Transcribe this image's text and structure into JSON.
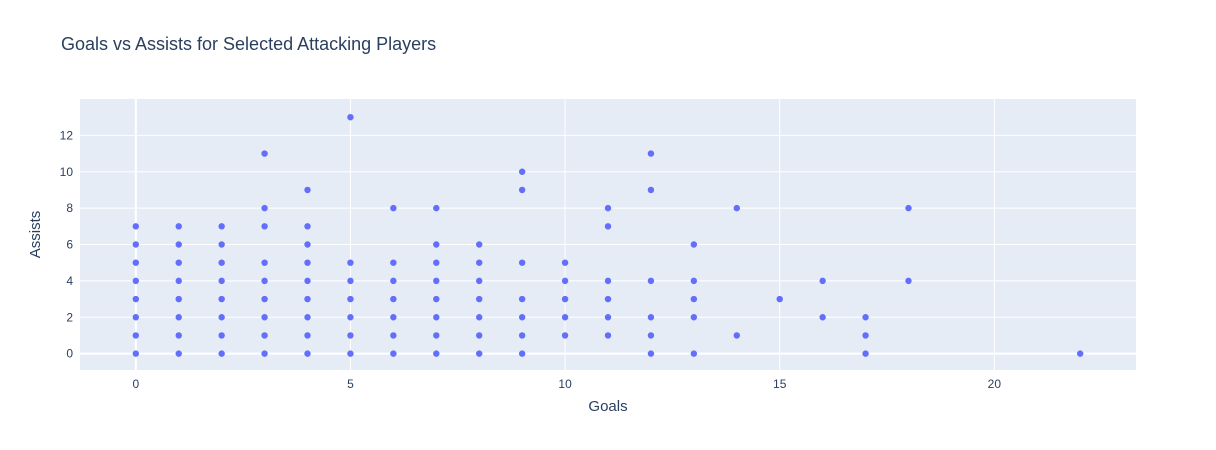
{
  "chart_data": {
    "type": "scatter",
    "title": "Goals vs Assists for Selected Attacking Players",
    "xlabel": "Goals",
    "ylabel": "Assists",
    "xlim": [
      -1.3,
      23.3
    ],
    "ylim": [
      -0.9,
      14.0
    ],
    "x_ticks": [
      0,
      5,
      10,
      15,
      20
    ],
    "y_ticks": [
      0,
      2,
      4,
      6,
      8,
      10,
      12
    ],
    "grid": true,
    "legend": "none",
    "colors": {
      "marker": "#636efa",
      "plot_bg": "#e5ecf6",
      "grid": "#ffffff",
      "text": "#2a3f5f"
    },
    "series": [
      {
        "points": [
          [
            0,
            0
          ],
          [
            0,
            1
          ],
          [
            0,
            2
          ],
          [
            0,
            3
          ],
          [
            0,
            4
          ],
          [
            0,
            5
          ],
          [
            0,
            6
          ],
          [
            0,
            7
          ],
          [
            1,
            0
          ],
          [
            1,
            1
          ],
          [
            1,
            2
          ],
          [
            1,
            3
          ],
          [
            1,
            4
          ],
          [
            1,
            5
          ],
          [
            1,
            6
          ],
          [
            1,
            7
          ],
          [
            2,
            0
          ],
          [
            2,
            1
          ],
          [
            2,
            2
          ],
          [
            2,
            3
          ],
          [
            2,
            4
          ],
          [
            2,
            5
          ],
          [
            2,
            6
          ],
          [
            2,
            7
          ],
          [
            3,
            0
          ],
          [
            3,
            1
          ],
          [
            3,
            2
          ],
          [
            3,
            3
          ],
          [
            3,
            4
          ],
          [
            3,
            5
          ],
          [
            3,
            7
          ],
          [
            3,
            8
          ],
          [
            3,
            11
          ],
          [
            4,
            0
          ],
          [
            4,
            1
          ],
          [
            4,
            2
          ],
          [
            4,
            3
          ],
          [
            4,
            4
          ],
          [
            4,
            5
          ],
          [
            4,
            6
          ],
          [
            4,
            7
          ],
          [
            4,
            9
          ],
          [
            5,
            0
          ],
          [
            5,
            1
          ],
          [
            5,
            2
          ],
          [
            5,
            3
          ],
          [
            5,
            4
          ],
          [
            5,
            5
          ],
          [
            5,
            13
          ],
          [
            6,
            0
          ],
          [
            6,
            1
          ],
          [
            6,
            2
          ],
          [
            6,
            3
          ],
          [
            6,
            4
          ],
          [
            6,
            5
          ],
          [
            6,
            8
          ],
          [
            7,
            0
          ],
          [
            7,
            1
          ],
          [
            7,
            2
          ],
          [
            7,
            3
          ],
          [
            7,
            4
          ],
          [
            7,
            5
          ],
          [
            7,
            6
          ],
          [
            7,
            8
          ],
          [
            8,
            0
          ],
          [
            8,
            1
          ],
          [
            8,
            2
          ],
          [
            8,
            3
          ],
          [
            8,
            4
          ],
          [
            8,
            5
          ],
          [
            8,
            6
          ],
          [
            9,
            0
          ],
          [
            9,
            1
          ],
          [
            9,
            2
          ],
          [
            9,
            3
          ],
          [
            9,
            5
          ],
          [
            9,
            9
          ],
          [
            9,
            10
          ],
          [
            10,
            1
          ],
          [
            10,
            2
          ],
          [
            10,
            3
          ],
          [
            10,
            4
          ],
          [
            10,
            5
          ],
          [
            11,
            1
          ],
          [
            11,
            2
          ],
          [
            11,
            3
          ],
          [
            11,
            4
          ],
          [
            11,
            7
          ],
          [
            11,
            8
          ],
          [
            12,
            0
          ],
          [
            12,
            1
          ],
          [
            12,
            2
          ],
          [
            12,
            4
          ],
          [
            12,
            9
          ],
          [
            12,
            11
          ],
          [
            13,
            0
          ],
          [
            13,
            2
          ],
          [
            13,
            3
          ],
          [
            13,
            4
          ],
          [
            13,
            6
          ],
          [
            14,
            1
          ],
          [
            14,
            8
          ],
          [
            15,
            3
          ],
          [
            16,
            2
          ],
          [
            16,
            4
          ],
          [
            17,
            0
          ],
          [
            17,
            1
          ],
          [
            17,
            2
          ],
          [
            18,
            4
          ],
          [
            18,
            8
          ],
          [
            22,
            0
          ]
        ]
      }
    ]
  }
}
